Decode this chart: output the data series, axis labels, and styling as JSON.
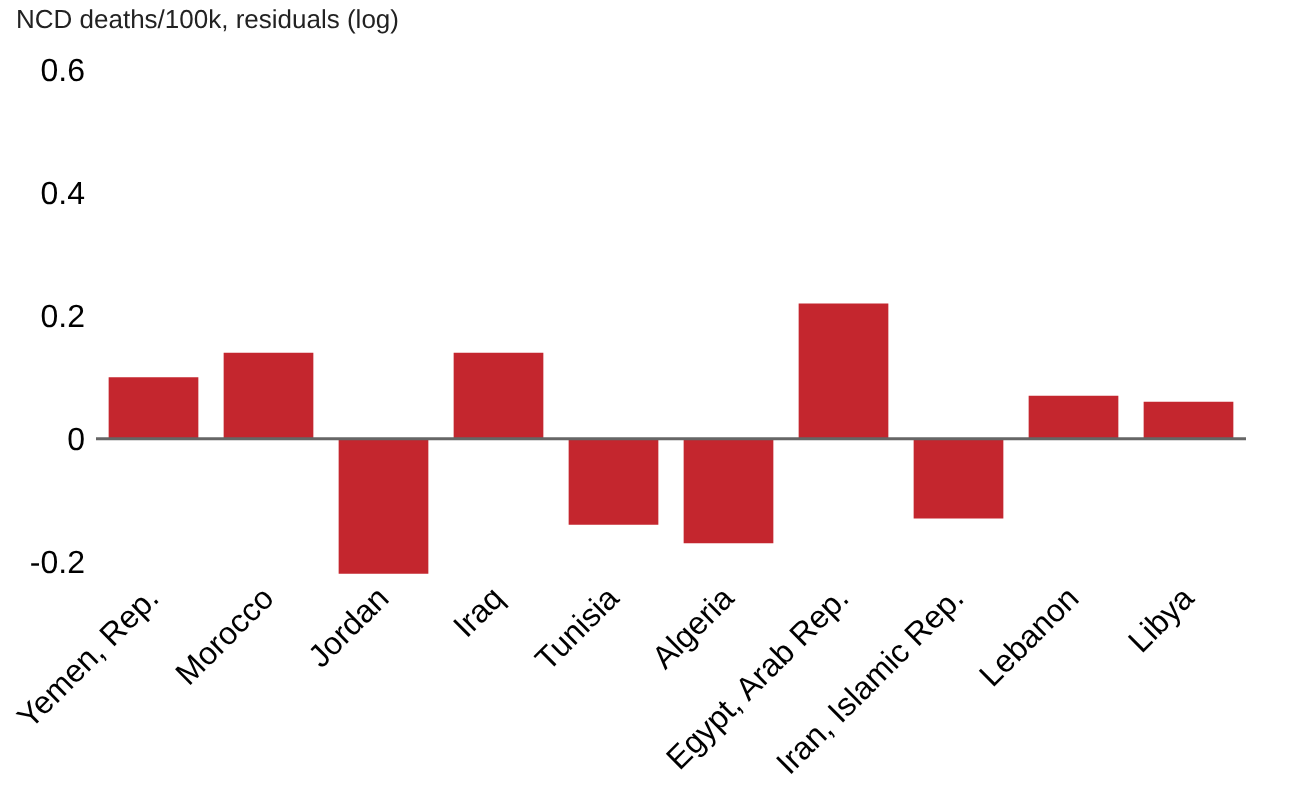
{
  "chart_data": {
    "type": "bar",
    "title": "NCD deaths/100k, residuals (log)",
    "categories": [
      "Yemen, Rep.",
      "Morocco",
      "Jordan",
      "Iraq",
      "Tunisia",
      "Algeria",
      "Egypt, Arab Rep.",
      "Iran, Islamic Rep.",
      "Lebanon",
      "Libya"
    ],
    "values": [
      0.1,
      0.14,
      -0.22,
      0.14,
      -0.14,
      -0.17,
      0.22,
      -0.13,
      0.07,
      0.06
    ],
    "color": "#c4262e",
    "ylim": [
      -0.23,
      0.6
    ],
    "yticks": [
      {
        "value": -0.2,
        "label": "-0.2"
      },
      0,
      0.2,
      0.4,
      0.6
    ],
    "grid": false,
    "ref_lines": [
      {
        "axis": "y",
        "value": 0,
        "color": "#666666"
      }
    ]
  }
}
